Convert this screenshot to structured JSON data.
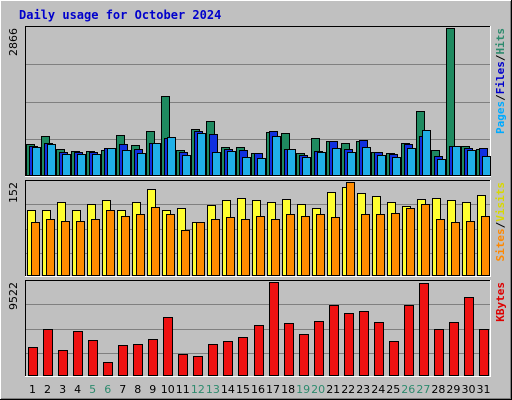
{
  "chart_data": {
    "type": "bar",
    "title": "Daily usage for October 2024",
    "categories": [
      "1",
      "2",
      "3",
      "4",
      "5",
      "6",
      "7",
      "8",
      "9",
      "10",
      "11",
      "12",
      "13",
      "14",
      "15",
      "16",
      "17",
      "18",
      "19",
      "20",
      "21",
      "22",
      "23",
      "24",
      "25",
      "26",
      "27",
      "28",
      "29",
      "30",
      "31"
    ],
    "weekend_days": [
      "5",
      "6",
      "12",
      "13",
      "19",
      "20",
      "26",
      "27"
    ],
    "panels": [
      {
        "id": "hits-panel",
        "max_label": "2866",
        "ylim": [
          0,
          2866
        ],
        "legend": [
          {
            "text": "Pages",
            "color": "#00aaff"
          },
          {
            "text": "/",
            "color": "#000000"
          },
          {
            "text": "Files",
            "color": "#0000cc"
          },
          {
            "text": "/",
            "color": "#000000"
          },
          {
            "text": "Hits",
            "color": "#2e8b6e"
          }
        ],
        "series": [
          {
            "name": "Hits",
            "color": "#1f8a60",
            "values": [
              610,
              760,
              500,
              470,
              470,
              490,
              780,
              580,
              860,
              1540,
              480,
              900,
              1060,
              550,
              550,
              430,
              840,
              810,
              420,
              730,
              660,
              630,
              660,
              450,
              420,
              630,
              1240,
              490,
              2866,
              560,
              500
            ]
          },
          {
            "name": "Files",
            "color": "#1030e0",
            "values": [
              570,
              630,
              440,
              440,
              440,
              520,
              610,
              510,
              630,
              730,
              440,
              860,
              790,
              500,
              490,
              430,
              850,
              510,
              390,
              460,
              670,
              510,
              690,
              440,
              410,
              610,
              760,
              380,
              570,
              520,
              520
            ]
          },
          {
            "name": "Pages",
            "color": "#20b0e8",
            "values": [
              540,
              610,
              410,
              400,
              410,
              520,
              490,
              420,
              630,
              740,
              390,
              820,
              450,
              470,
              360,
              330,
              760,
              500,
              360,
              440,
              520,
              440,
              550,
              390,
              350,
              530,
              880,
              320,
              570,
              490,
              370
            ]
          }
        ]
      },
      {
        "id": "visits-panel",
        "max_label": "152",
        "ylim": [
          0,
          152
        ],
        "legend": [
          {
            "text": "Sites",
            "color": "#ff8800"
          },
          {
            "text": "/",
            "color": "#000000"
          },
          {
            "text": "Visits",
            "color": "#d8d800"
          }
        ],
        "series": [
          {
            "name": "Visits",
            "color": "#ffff30",
            "values": [
              106,
              106,
              119,
              106,
              116,
              122,
              106,
              119,
              141,
              106,
              109,
              86,
              114,
              122,
              126,
              122,
              119,
              124,
              116,
              109,
              136,
              144,
              134,
              129,
              119,
              112,
              124,
              126,
              122,
              119,
              131
            ]
          },
          {
            "name": "Sites",
            "color": "#ff8c00",
            "values": [
              86,
              91,
              89,
              89,
              91,
              106,
              96,
              99,
              111,
              99,
              74,
              86,
              91,
              94,
              91,
              96,
              91,
              99,
              96,
              99,
              94,
              152,
              99,
              99,
              101,
              109,
              116,
              91,
              86,
              89,
              96
            ]
          }
        ]
      },
      {
        "id": "kbytes-panel",
        "max_label": "9522",
        "ylim": [
          0,
          9522
        ],
        "legend": [
          {
            "text": "KBytes",
            "color": "#dd0000"
          }
        ],
        "series": [
          {
            "name": "KBytes",
            "color": "#ee1111",
            "values": [
              2830,
              4660,
              2600,
              4550,
              3600,
              1300,
              3030,
              3160,
              3660,
              5930,
              2100,
              1900,
              3160,
              3500,
              3860,
              5140,
              9522,
              5350,
              4200,
              5570,
              7130,
              6300,
              6560,
              5470,
              3460,
              7140,
              9400,
              4660,
              5470,
              8010,
              4720
            ]
          }
        ]
      }
    ]
  }
}
